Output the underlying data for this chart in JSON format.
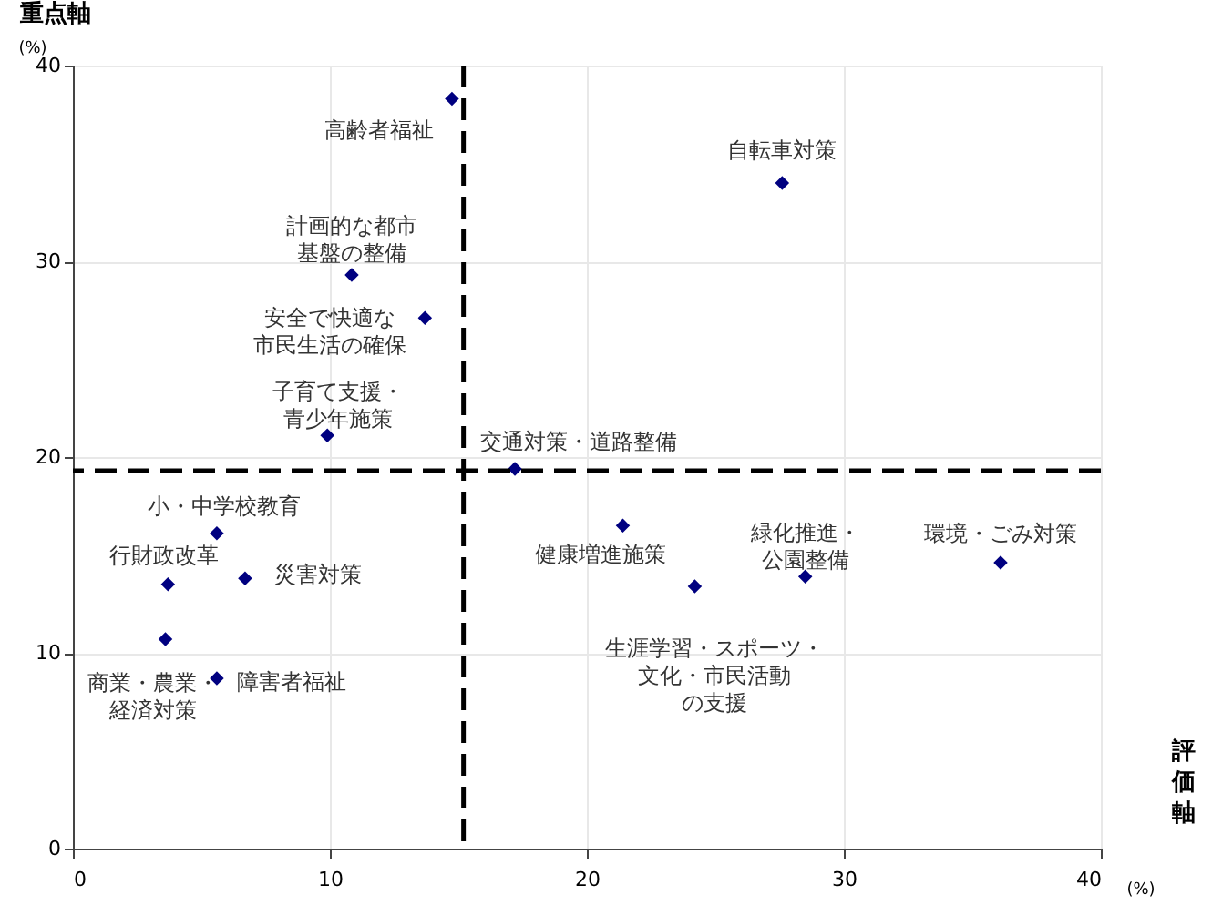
{
  "chart_data": {
    "type": "scatter",
    "xlabel": "評価軸",
    "ylabel": "重点軸",
    "x": [
      14.75,
      27.6,
      10.85,
      13.7,
      9.9,
      17.2,
      5.6,
      21.4,
      28.5,
      36.1,
      3.7,
      6.7,
      24.2,
      3.6,
      5.6
    ],
    "series": [
      {
        "color": "#000080",
        "values": [
          38.3,
          34.0,
          29.3,
          27.1,
          21.1,
          19.4,
          16.1,
          16.5,
          13.9,
          14.6,
          13.5,
          13.8,
          13.4,
          10.7,
          8.7
        ]
      }
    ],
    "xlim": [
      0,
      40
    ],
    "ylim": [
      0,
      40
    ],
    "xticks": [
      0,
      10,
      20,
      30,
      40
    ],
    "yticks": [
      0,
      10,
      20,
      30,
      40
    ],
    "grid": true,
    "marker": "diamond",
    "ref_lines": [
      {
        "axis": "x",
        "value": 15.2,
        "color": "#000000",
        "line_style": "dashed"
      },
      {
        "axis": "y",
        "value": 19.3,
        "color": "#000000",
        "line_style": "dashed"
      }
    ],
    "annotations": [
      {
        "text": "高齢者福祉",
        "x": 14.75,
        "y": 38.3
      },
      {
        "text": "自転車対策",
        "x": 27.6,
        "y": 34.0
      },
      {
        "text": "計画的な都市基盤の整備",
        "x": 10.85,
        "y": 29.3
      },
      {
        "text": "安全で快適な市民生活の確保",
        "x": 13.7,
        "y": 27.1
      },
      {
        "text": "子育て支援・青少年施策",
        "x": 9.9,
        "y": 21.1
      },
      {
        "text": "交通対策・道路整備",
        "x": 17.2,
        "y": 19.4
      },
      {
        "text": "小・中学校教育",
        "x": 5.6,
        "y": 16.1
      },
      {
        "text": "健康増進施策",
        "x": 21.4,
        "y": 16.5
      },
      {
        "text": "緑化推進・公園整備",
        "x": 28.5,
        "y": 13.9
      },
      {
        "text": "環境・ごみ対策",
        "x": 36.1,
        "y": 14.6
      },
      {
        "text": "行財政改革",
        "x": 3.7,
        "y": 13.5
      },
      {
        "text": "災害対策",
        "x": 6.7,
        "y": 13.8
      },
      {
        "text": "生涯学習・スポーツ・文化・市民活動の支援",
        "x": 24.2,
        "y": 13.4
      },
      {
        "text": "商業・農業・経済対策",
        "x": 3.6,
        "y": 10.7
      },
      {
        "text": "障害者福祉",
        "x": 5.6,
        "y": 8.7
      },
      "(%)",
      "(%)"
    ]
  }
}
